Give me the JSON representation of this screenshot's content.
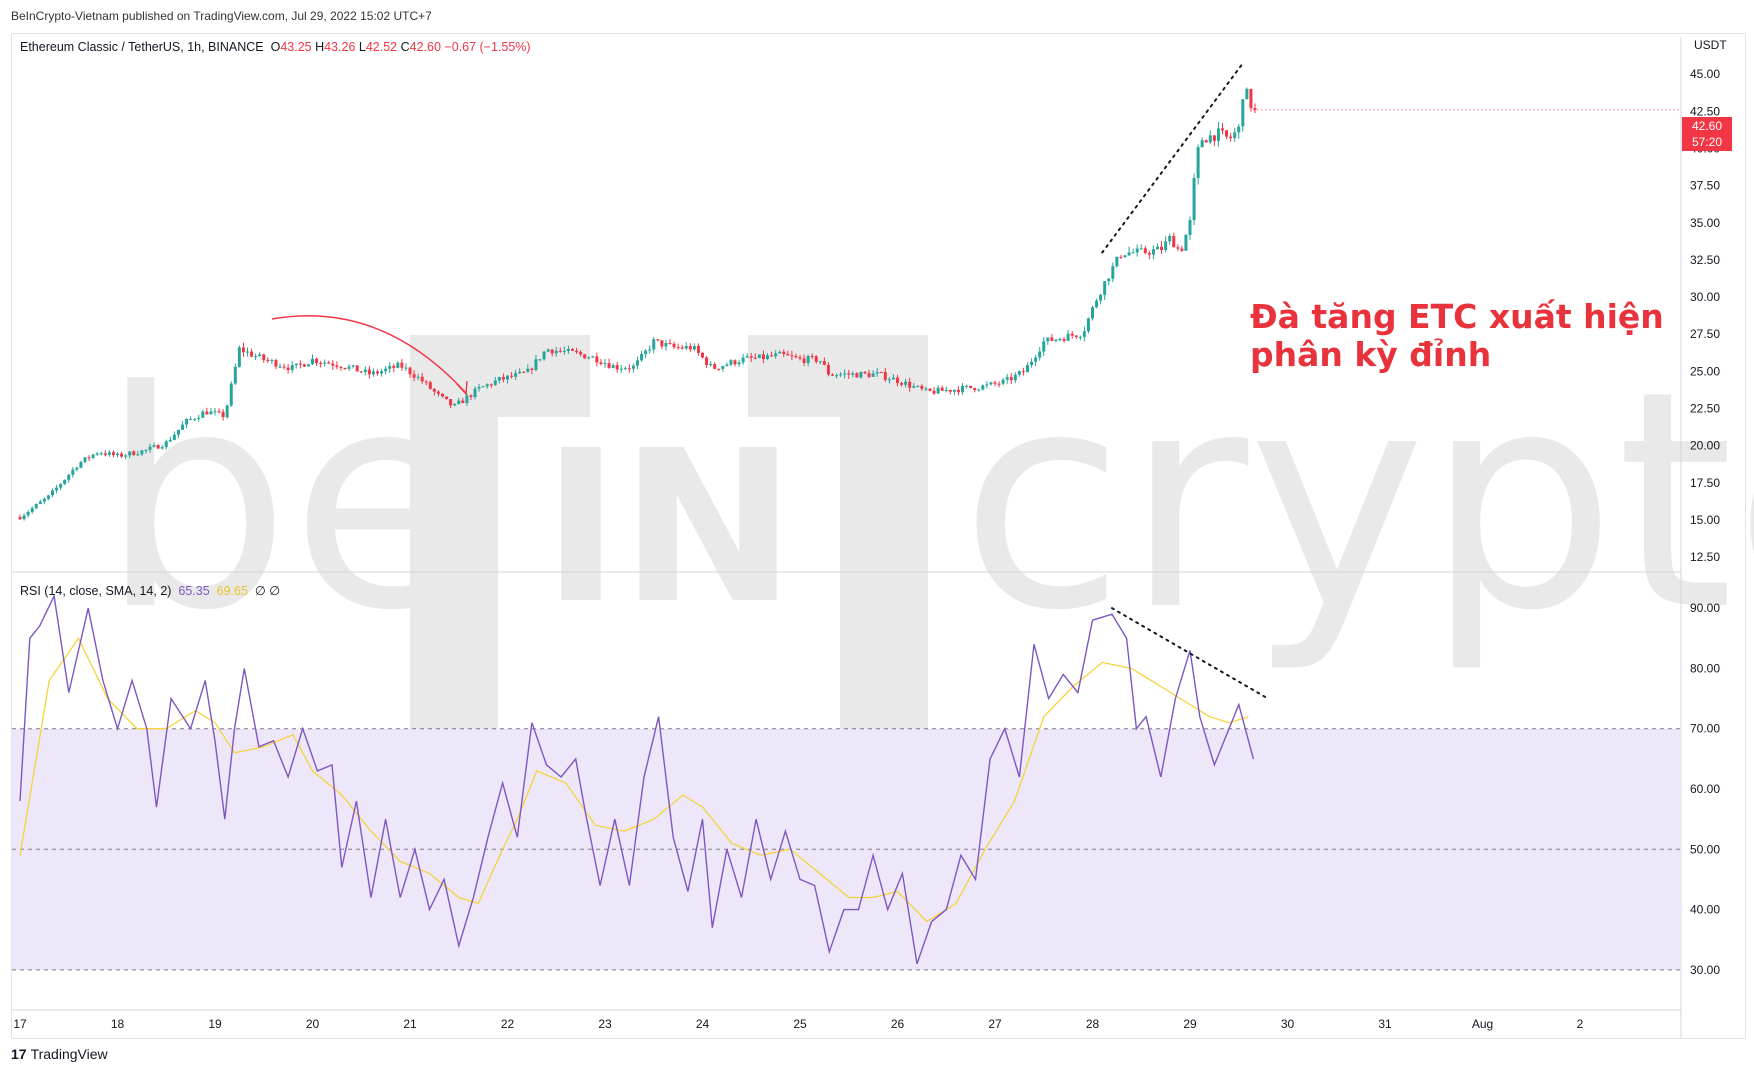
{
  "header": {
    "published": "BeInCrypto-Vietnam published on TradingView.com, Jul 29, 2022 15:02 UTC+7"
  },
  "symbol": {
    "name": "Ethereum Classic / TetherUS, 1h, BINANCE",
    "o_lbl": "O",
    "o": "43.25",
    "h_lbl": "H",
    "h": "43.26",
    "l_lbl": "L",
    "l": "42.52",
    "c_lbl": "C",
    "c": "42.60",
    "change": "−0.67 (−1.55%)"
  },
  "rsi_legend": {
    "label": "RSI (14, close, SMA, 14, 2)",
    "rsi": "65.35",
    "sma": "69.65",
    "extra": "∅ ∅"
  },
  "axis_unit": "USDT",
  "price_tag": {
    "price": "42.60",
    "countdown": "57:20"
  },
  "annotation": {
    "line1": "Đà tăng ETC xuất hiện",
    "line2": "phân kỳ đỉnh"
  },
  "watermark": {
    "left": "be",
    "mid": "IN",
    "right": "crypto"
  },
  "footer": {
    "logo_mark": "17",
    "brand": "TradingView"
  },
  "colors": {
    "up": "#26a69a",
    "down": "#f23645",
    "rsi": "#7e57c2",
    "rsi_ma": "#f5d33b",
    "band": "#ede7f9"
  },
  "chart_data": [
    {
      "type": "candlestick",
      "title": "Ethereum Classic / TetherUS, 1h, BINANCE",
      "ylim": [
        11.5,
        47.5
      ],
      "ylabel": "USDT",
      "yticks": [
        45.0,
        42.5,
        40.0,
        37.5,
        35.0,
        32.5,
        30.0,
        27.5,
        25.0,
        22.5,
        20.0,
        17.5,
        15.0,
        12.5
      ],
      "ytick_labels": [
        "45.00",
        "42.50",
        "40.00",
        "37.50",
        "35.00",
        "32.50",
        "30.00",
        "27.50",
        "25.00",
        "22.50",
        "20.00",
        "17.50",
        "15.00",
        "12.50"
      ],
      "x_day_range": [
        17,
        29.65
      ],
      "close_path": [
        [
          17.0,
          15.2
        ],
        [
          17.3,
          16.6
        ],
        [
          17.6,
          18.8
        ],
        [
          17.8,
          19.6
        ],
        [
          18.0,
          19.3
        ],
        [
          18.3,
          19.7
        ],
        [
          18.5,
          20.2
        ],
        [
          18.7,
          21.6
        ],
        [
          18.9,
          22.3
        ],
        [
          19.1,
          22.0
        ],
        [
          19.25,
          26.5
        ],
        [
          19.5,
          25.8
        ],
        [
          19.8,
          25.2
        ],
        [
          20.0,
          25.8
        ],
        [
          20.3,
          25.4
        ],
        [
          20.6,
          24.8
        ],
        [
          20.9,
          25.4
        ],
        [
          21.1,
          24.5
        ],
        [
          21.3,
          23.3
        ],
        [
          21.45,
          22.6
        ],
        [
          21.7,
          23.8
        ],
        [
          21.9,
          24.4
        ],
        [
          22.2,
          24.9
        ],
        [
          22.4,
          26.5
        ],
        [
          22.7,
          26.2
        ],
        [
          22.9,
          25.9
        ],
        [
          23.1,
          25.3
        ],
        [
          23.3,
          25.3
        ],
        [
          23.5,
          27.0
        ],
        [
          23.7,
          26.6
        ],
        [
          23.9,
          26.6
        ],
        [
          24.1,
          25.2
        ],
        [
          24.4,
          25.8
        ],
        [
          24.6,
          25.9
        ],
        [
          24.8,
          26.1
        ],
        [
          25.0,
          25.8
        ],
        [
          25.2,
          25.8
        ],
        [
          25.3,
          24.8
        ],
        [
          25.5,
          24.8
        ],
        [
          25.8,
          24.8
        ],
        [
          26.0,
          24.4
        ],
        [
          26.3,
          23.6
        ],
        [
          26.6,
          23.8
        ],
        [
          26.9,
          24.0
        ],
        [
          27.1,
          24.3
        ],
        [
          27.3,
          25.0
        ],
        [
          27.5,
          27.0
        ],
        [
          27.7,
          27.3
        ],
        [
          27.9,
          27.6
        ],
        [
          28.05,
          30.0
        ],
        [
          28.15,
          31.3
        ],
        [
          28.3,
          33.0
        ],
        [
          28.5,
          33.0
        ],
        [
          28.7,
          33.2
        ],
        [
          28.8,
          34.0
        ],
        [
          28.9,
          33.0
        ],
        [
          29.0,
          35.0
        ],
        [
          29.05,
          38.3
        ],
        [
          29.1,
          40.6
        ],
        [
          29.3,
          41.0
        ],
        [
          29.4,
          40.6
        ],
        [
          29.5,
          41.3
        ],
        [
          29.55,
          44.2
        ],
        [
          29.6,
          43.3
        ],
        [
          29.65,
          42.6
        ]
      ],
      "last_price": 42.6,
      "trendline": [
        [
          28.1,
          33.0
        ],
        [
          29.55,
          45.8
        ]
      ]
    },
    {
      "type": "line",
      "title": "RSI (14, close, SMA, 14, 2)",
      "ylim": [
        25,
        96
      ],
      "yticks": [
        90.0,
        80.0,
        70.0,
        60.0,
        50.0,
        40.0,
        30.0
      ],
      "ytick_labels": [
        "90.00",
        "80.00",
        "70.00",
        "60.00",
        "50.00",
        "40.00",
        "30.00"
      ],
      "bands": [
        70,
        50,
        30
      ],
      "series": [
        {
          "values_path": [
            [
              17.0,
              58
            ],
            [
              17.1,
              85
            ],
            [
              17.2,
              87
            ],
            [
              17.35,
              92
            ],
            [
              17.5,
              76
            ],
            [
              17.7,
              90
            ],
            [
              17.85,
              78
            ],
            [
              18.0,
              70
            ],
            [
              18.15,
              78
            ],
            [
              18.3,
              70
            ],
            [
              18.4,
              57
            ],
            [
              18.55,
              75
            ],
            [
              18.75,
              70
            ],
            [
              18.9,
              78
            ],
            [
              19.0,
              68
            ],
            [
              19.1,
              55
            ],
            [
              19.2,
              70
            ],
            [
              19.3,
              80
            ],
            [
              19.45,
              67
            ],
            [
              19.6,
              68
            ],
            [
              19.75,
              62
            ],
            [
              19.9,
              70
            ],
            [
              20.05,
              63
            ],
            [
              20.2,
              64
            ],
            [
              20.3,
              47
            ],
            [
              20.45,
              58
            ],
            [
              20.6,
              42
            ],
            [
              20.75,
              55
            ],
            [
              20.9,
              42
            ],
            [
              21.05,
              50
            ],
            [
              21.2,
              40
            ],
            [
              21.35,
              45
            ],
            [
              21.5,
              34
            ],
            [
              21.65,
              42
            ],
            [
              21.8,
              52
            ],
            [
              21.95,
              61
            ],
            [
              22.1,
              52
            ],
            [
              22.25,
              71
            ],
            [
              22.4,
              64
            ],
            [
              22.55,
              62
            ],
            [
              22.7,
              65
            ],
            [
              22.8,
              56
            ],
            [
              22.95,
              44
            ],
            [
              23.1,
              55
            ],
            [
              23.25,
              44
            ],
            [
              23.4,
              62
            ],
            [
              23.55,
              72
            ],
            [
              23.7,
              52
            ],
            [
              23.85,
              43
            ],
            [
              24.0,
              55
            ],
            [
              24.1,
              37
            ],
            [
              24.25,
              50
            ],
            [
              24.4,
              42
            ],
            [
              24.55,
              55
            ],
            [
              24.7,
              45
            ],
            [
              24.85,
              53
            ],
            [
              25.0,
              45
            ],
            [
              25.15,
              44
            ],
            [
              25.3,
              33
            ],
            [
              25.45,
              40
            ],
            [
              25.6,
              40
            ],
            [
              25.75,
              49
            ],
            [
              25.9,
              40
            ],
            [
              26.05,
              46
            ],
            [
              26.2,
              31
            ],
            [
              26.35,
              38
            ],
            [
              26.5,
              40
            ],
            [
              26.65,
              49
            ],
            [
              26.8,
              45
            ],
            [
              26.95,
              65
            ],
            [
              27.1,
              70
            ],
            [
              27.25,
              62
            ],
            [
              27.4,
              84
            ],
            [
              27.55,
              75
            ],
            [
              27.7,
              79
            ],
            [
              27.85,
              76
            ],
            [
              28.0,
              88
            ],
            [
              28.2,
              89
            ],
            [
              28.35,
              85
            ],
            [
              28.45,
              70
            ],
            [
              28.55,
              72
            ],
            [
              28.7,
              62
            ],
            [
              28.85,
              75
            ],
            [
              29.0,
              83
            ],
            [
              29.1,
              72
            ],
            [
              29.25,
              64
            ],
            [
              29.4,
              70
            ],
            [
              29.5,
              74
            ],
            [
              29.65,
              65
            ]
          ]
        },
        {
          "values_path": [
            [
              17.0,
              49
            ],
            [
              17.3,
              78
            ],
            [
              17.6,
              85
            ],
            [
              17.9,
              75
            ],
            [
              18.2,
              70
            ],
            [
              18.5,
              70
            ],
            [
              18.8,
              73
            ],
            [
              19.0,
              71
            ],
            [
              19.2,
              66
            ],
            [
              19.5,
              67
            ],
            [
              19.8,
              69
            ],
            [
              20.0,
              63
            ],
            [
              20.3,
              59
            ],
            [
              20.6,
              53
            ],
            [
              20.9,
              48
            ],
            [
              21.2,
              46
            ],
            [
              21.5,
              42
            ],
            [
              21.7,
              41
            ],
            [
              21.95,
              50
            ],
            [
              22.1,
              55
            ],
            [
              22.3,
              63
            ],
            [
              22.6,
              61
            ],
            [
              22.9,
              54
            ],
            [
              23.2,
              53
            ],
            [
              23.5,
              55
            ],
            [
              23.8,
              59
            ],
            [
              24.0,
              57
            ],
            [
              24.3,
              51
            ],
            [
              24.6,
              49
            ],
            [
              24.9,
              50
            ],
            [
              25.2,
              46
            ],
            [
              25.5,
              42
            ],
            [
              25.75,
              42
            ],
            [
              26.0,
              43
            ],
            [
              26.3,
              38
            ],
            [
              26.6,
              41
            ],
            [
              26.9,
              50
            ],
            [
              27.2,
              58
            ],
            [
              27.5,
              72
            ],
            [
              27.8,
              77
            ],
            [
              28.1,
              81
            ],
            [
              28.4,
              80
            ],
            [
              28.7,
              77
            ],
            [
              29.0,
              74
            ],
            [
              29.2,
              72
            ],
            [
              29.4,
              71
            ],
            [
              29.6,
              72
            ]
          ]
        }
      ],
      "trendline": [
        [
          28.2,
          90
        ],
        [
          29.8,
          75
        ]
      ]
    }
  ],
  "x_axis": {
    "ticks": [
      "17",
      "18",
      "19",
      "20",
      "21",
      "22",
      "23",
      "24",
      "25",
      "26",
      "27",
      "28",
      "29",
      "30",
      "31",
      "Aug",
      "2"
    ]
  }
}
